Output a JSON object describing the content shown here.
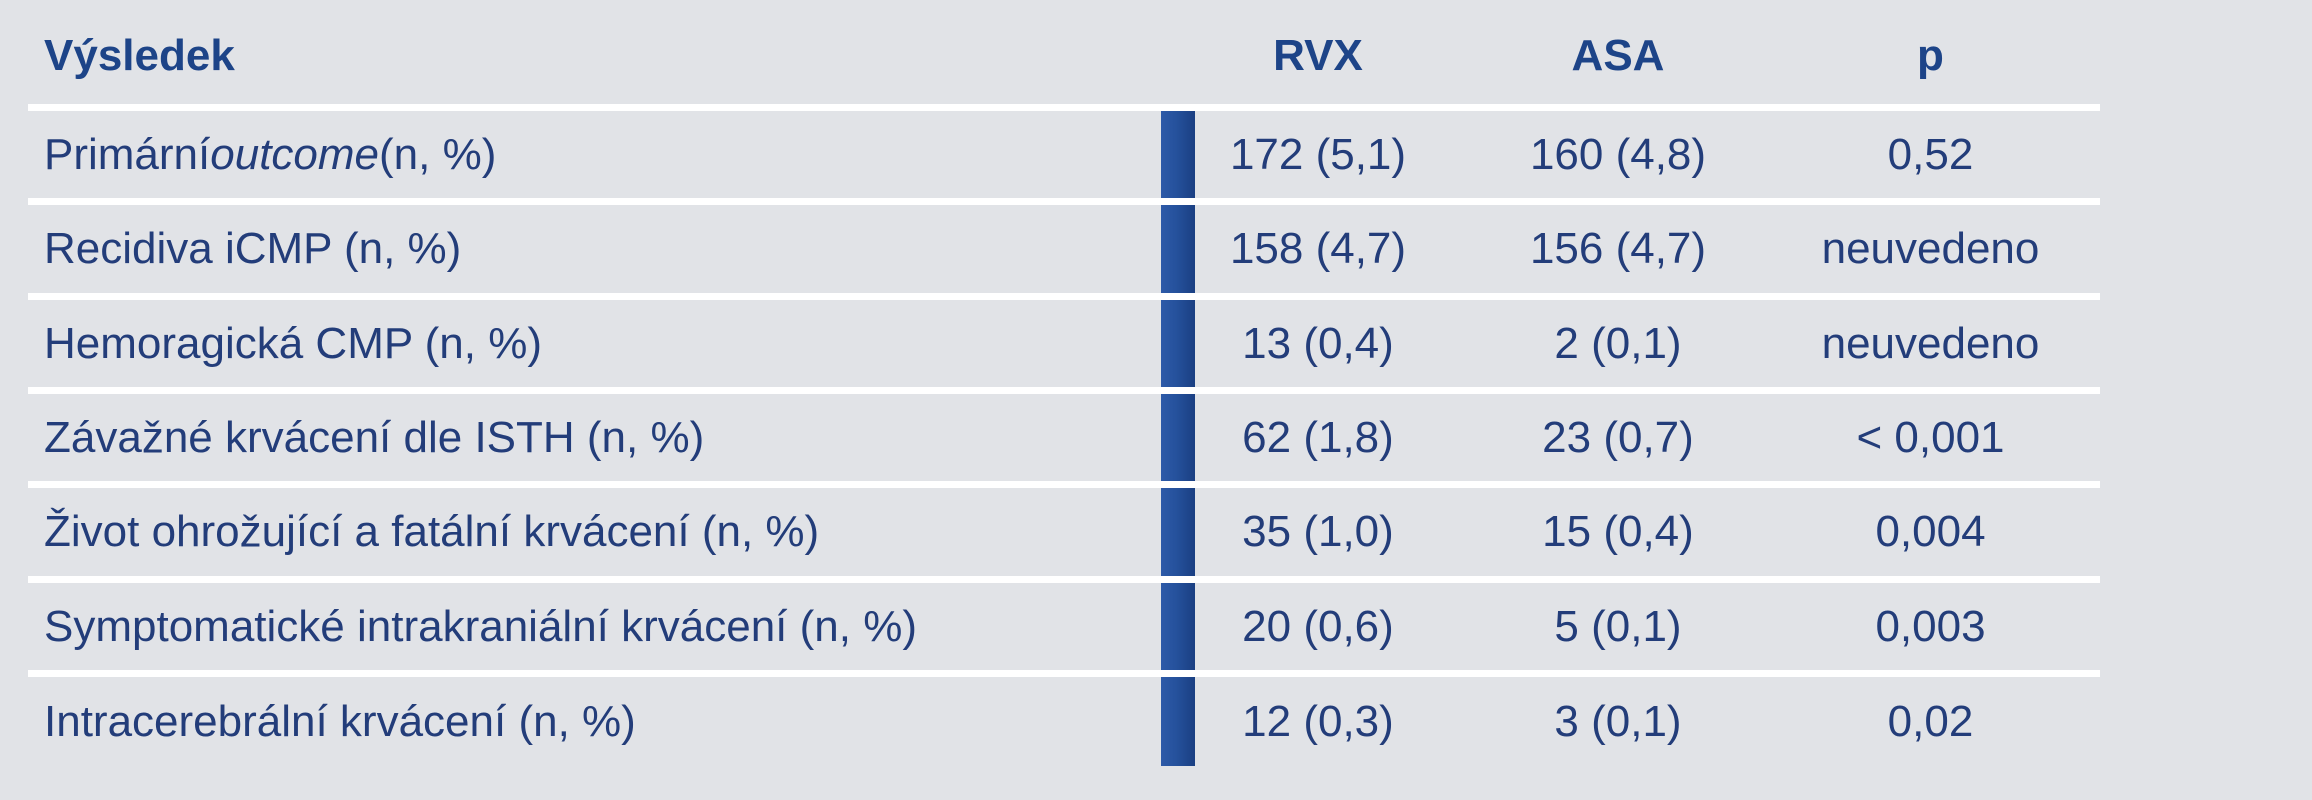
{
  "header": {
    "col_result": "Výsledek",
    "col_rvx": "RVX",
    "col_asa": "ASA",
    "col_p": "p"
  },
  "rows": [
    {
      "label_pre": "Primární ",
      "label_em": "outcome",
      "label_post": " (n, %)",
      "rvx": "172 (5,1)",
      "asa": "160 (4,8)",
      "p": "0,52"
    },
    {
      "label": "Recidiva iCMP (n, %)",
      "rvx": "158 (4,7)",
      "asa": "156 (4,7)",
      "p": "neuvedeno"
    },
    {
      "label": "Hemoragická CMP (n, %)",
      "rvx": "13 (0,4)",
      "asa": "2 (0,1)",
      "p": "neuvedeno"
    },
    {
      "label": "Závažné krvácení dle ISTH (n, %)",
      "rvx": "62 (1,8)",
      "asa": "23 (0,7)",
      "p": "< 0,001"
    },
    {
      "label": "Život ohrožující a fatální krvácení (n, %)",
      "rvx": "35 (1,0)",
      "asa": "15 (0,4)",
      "p": "0,004"
    },
    {
      "label": "Symptomatické intrakraniální krvácení (n, %)",
      "rvx": "20 (0,6)",
      "asa": "5 (0,1)",
      "p": "0,003"
    },
    {
      "label": "Intracerebrální krvácení (n, %)",
      "rvx": "12 (0,3)",
      "asa": "3 (0,1)",
      "p": "0,02"
    }
  ],
  "colors": {
    "background": "#e1e3e7",
    "text": "#233d7a",
    "header_text": "#1d4488",
    "accent_bar": "#25519c",
    "divider": "#ffffff"
  }
}
